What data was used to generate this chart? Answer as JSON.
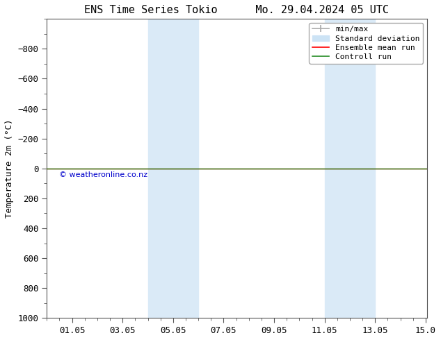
{
  "title": "ENS Time Series Tokio      Mo. 29.04.2024 05 UTC",
  "ylabel": "Temperature 2m (°C)",
  "xlim": [
    0.0,
    15.05
  ],
  "ylim": [
    1000,
    -1000
  ],
  "yticks": [
    -800,
    -600,
    -400,
    -200,
    0,
    200,
    400,
    600,
    800,
    1000
  ],
  "xtick_labels": [
    "01.05",
    "03.05",
    "05.05",
    "07.05",
    "09.05",
    "11.05",
    "13.05",
    "15.0"
  ],
  "xtick_positions": [
    1,
    3,
    5,
    7,
    9,
    11,
    13,
    15
  ],
  "background_color": "#ffffff",
  "plot_bg_color": "#ffffff",
  "shaded_regions": [
    {
      "x_start": 4.0,
      "x_end": 6.0,
      "color": "#daeaf7"
    },
    {
      "x_start": 11.0,
      "x_end": 13.0,
      "color": "#daeaf7"
    }
  ],
  "green_line_y": 0,
  "green_line_color": "#228B22",
  "red_line_y": 0,
  "red_line_color": "#ff0000",
  "watermark_text": "© weatheronline.co.nz",
  "watermark_color": "#0000cc",
  "watermark_data_x": 0.5,
  "watermark_data_y": 55,
  "legend_minmax_color": "#aaaaaa",
  "legend_std_color": "#cce3f5",
  "legend_ens_color": "#ff0000",
  "legend_ctrl_color": "#228B22",
  "font_family": "DejaVu Sans Mono",
  "title_fontsize": 11,
  "axis_label_fontsize": 9,
  "tick_fontsize": 9,
  "legend_fontsize": 8
}
